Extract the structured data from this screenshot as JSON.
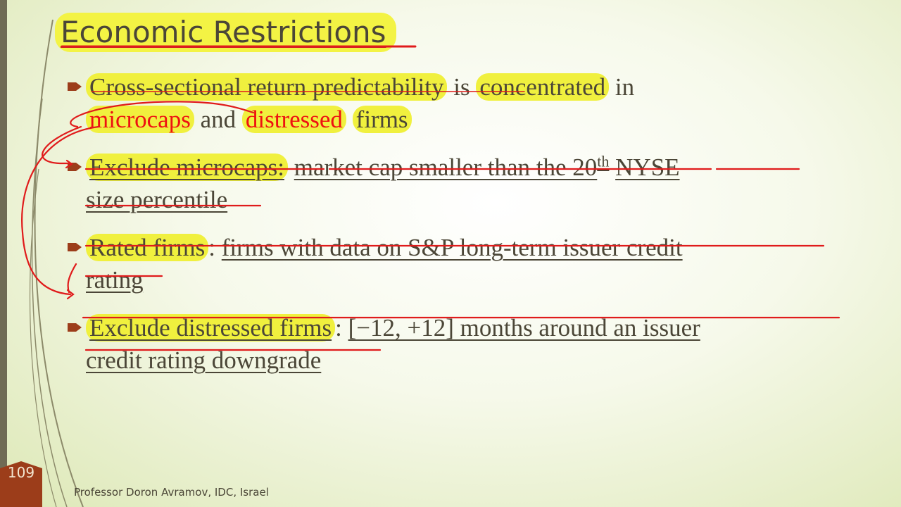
{
  "title": "Economic Restrictions",
  "bullets": [
    {
      "line1": [
        "Cross-sectional return predictability",
        " is ",
        "concentrated",
        " in"
      ],
      "line2": [
        "microcaps",
        " and ",
        "distressed",
        " ",
        "firms"
      ]
    },
    {
      "line1": [
        "Exclude microcaps:",
        " ",
        "market cap smaller than the 20",
        "th",
        " ",
        "NYSE"
      ],
      "line2": [
        "size percentile"
      ]
    },
    {
      "line1": [
        "Rated firms",
        ": ",
        "firms with data on S&P long-term issuer credit"
      ],
      "line2": [
        "rating"
      ]
    },
    {
      "line1": [
        "Exclude distressed firms",
        ": ",
        "[−12, +12] months around an issuer"
      ],
      "line2": [
        "credit rating downgrade"
      ]
    }
  ],
  "page_number": "109",
  "footer": "Professor Doron Avramov, IDC, Israel"
}
